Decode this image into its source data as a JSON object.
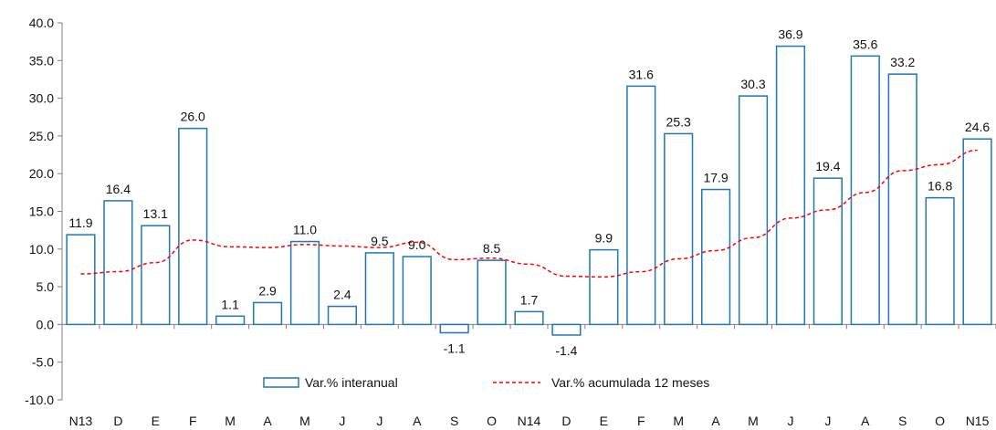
{
  "chart_data": {
    "type": "bar",
    "categories": [
      "N13",
      "D",
      "E",
      "F",
      "M",
      "A",
      "M",
      "J",
      "J",
      "A",
      "S",
      "O",
      "N14",
      "D",
      "E",
      "F",
      "M",
      "A",
      "M",
      "J",
      "J",
      "A",
      "S",
      "O",
      "N15"
    ],
    "series": [
      {
        "name": "Var.% interanual",
        "type": "bar",
        "values": [
          11.9,
          16.4,
          13.1,
          26.0,
          1.1,
          2.9,
          11.0,
          2.4,
          9.5,
          9.0,
          -1.1,
          8.5,
          1.7,
          -1.4,
          9.9,
          31.6,
          25.3,
          17.9,
          30.3,
          36.9,
          19.4,
          35.6,
          33.2,
          16.8,
          24.6
        ],
        "labels": [
          "11.9",
          "16.4",
          "13.1",
          "26.0",
          "1.1",
          "2.9",
          "11.0",
          "2.4",
          "9.5",
          "9.0",
          "-1.1",
          "8.5",
          "1.7",
          "-1.4",
          "9.9",
          "31.6",
          "25.3",
          "17.9",
          "30.3",
          "36.9",
          "19.4",
          "35.6",
          "33.2",
          "16.8",
          "24.6"
        ],
        "color": "#1f77b4"
      },
      {
        "name": "Var.% acumulada 12 meses",
        "type": "line",
        "style": "dashed",
        "values": [
          6.7,
          7.0,
          8.2,
          11.2,
          10.3,
          10.2,
          10.6,
          10.4,
          10.2,
          10.9,
          8.6,
          8.8,
          8.0,
          6.4,
          6.3,
          7.0,
          8.7,
          9.8,
          11.5,
          14.1,
          15.2,
          17.5,
          20.4,
          21.2,
          23.1
        ],
        "color": "#ff0000"
      }
    ],
    "y_ticks": [
      "40.0",
      "35.0",
      "30.0",
      "25.0",
      "20.0",
      "15.0",
      "10.0",
      "5.0",
      "0.0",
      "-5.0",
      "-10.0"
    ],
    "ylim": [
      -10,
      40
    ],
    "legend": "bottom-center",
    "grid": false
  }
}
